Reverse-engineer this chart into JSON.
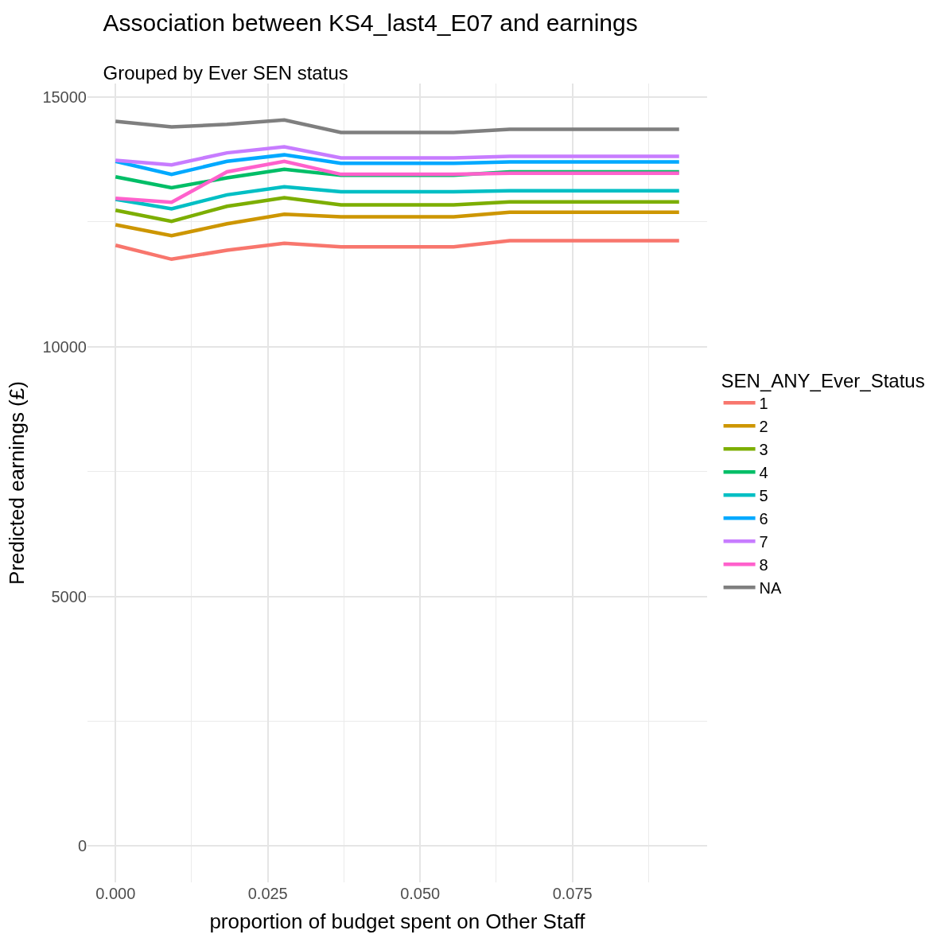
{
  "chart_data": {
    "type": "line",
    "title": "Association between KS4_last4_E07 and earnings",
    "subtitle": "Grouped by Ever SEN status",
    "xlabel": "proportion of budget spent on Other Staff",
    "ylabel": "Predicted earnings (£)",
    "legend_title": "SEN_ANY_Ever_Status",
    "x": [
      0,
      0.0092,
      0.0183,
      0.0277,
      0.037,
      0.0555,
      0.0647,
      0.0925
    ],
    "series": [
      {
        "name": "1",
        "color": "#f8766d",
        "values": [
          12030,
          11750,
          11930,
          12070,
          12000,
          12000,
          12120,
          12120
        ]
      },
      {
        "name": "2",
        "color": "#cd9600",
        "values": [
          12440,
          12220,
          12460,
          12650,
          12600,
          12600,
          12690,
          12690
        ]
      },
      {
        "name": "3",
        "color": "#7cae00",
        "values": [
          12730,
          12510,
          12810,
          12980,
          12840,
          12840,
          12900,
          12900
        ]
      },
      {
        "name": "4",
        "color": "#00be67",
        "values": [
          13400,
          13180,
          13380,
          13550,
          13430,
          13430,
          13500,
          13500
        ]
      },
      {
        "name": "5",
        "color": "#00bfc4",
        "values": [
          12950,
          12760,
          13040,
          13200,
          13100,
          13100,
          13120,
          13120
        ]
      },
      {
        "name": "6",
        "color": "#00a9ff",
        "values": [
          13710,
          13450,
          13710,
          13840,
          13670,
          13670,
          13700,
          13700
        ]
      },
      {
        "name": "7",
        "color": "#c77cff",
        "values": [
          13730,
          13640,
          13880,
          14000,
          13780,
          13780,
          13810,
          13810
        ]
      },
      {
        "name": "8",
        "color": "#ff61cc",
        "values": [
          12970,
          12890,
          13500,
          13710,
          13450,
          13450,
          13470,
          13470
        ]
      },
      {
        "name": "NA",
        "color": "#7f7f7f",
        "values": [
          14510,
          14400,
          14450,
          14540,
          14290,
          14290,
          14350,
          14350
        ]
      }
    ],
    "xlim": [
      -0.0046,
      0.0971
    ],
    "xticks": [
      {
        "value": 0,
        "label": "0.000"
      },
      {
        "value": 0.025,
        "label": "0.025"
      },
      {
        "value": 0.05,
        "label": "0.050"
      },
      {
        "value": 0.075,
        "label": "0.075"
      }
    ],
    "ylim": [
      -727,
      15268
    ],
    "yticks": [
      0,
      5000,
      10000,
      15000
    ],
    "grid": true,
    "legend": "right",
    "line_style": "solid",
    "marker": "none"
  }
}
